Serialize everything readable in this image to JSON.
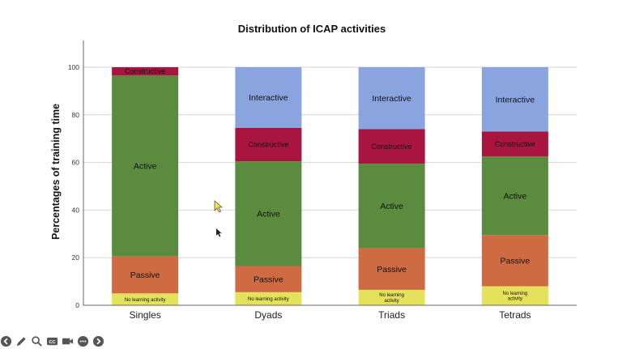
{
  "chart_data": {
    "type": "bar",
    "stacked": true,
    "title": "Distribution of ICAP activities",
    "xlabel": "",
    "ylabel": "Percentages of training time",
    "ylim": [
      0,
      100
    ],
    "yticks": [
      0,
      20,
      40,
      60,
      80,
      100
    ],
    "grid": true,
    "legend": "none (segments labeled in place)",
    "categories": [
      "Singles",
      "Dyads",
      "Triads",
      "Tetrads"
    ],
    "series": [
      {
        "name": "No learning activity",
        "labels": [
          "No learning activity",
          "No learning activity",
          "No learning\nactivity",
          "No learning\nactivity"
        ],
        "color": "#e4e15a",
        "values": [
          5,
          5.5,
          6.5,
          8
        ]
      },
      {
        "name": "Passive",
        "labels": [
          "Passive",
          "Passive",
          "Passive",
          "Passive"
        ],
        "color": "#cf6b43",
        "values": [
          15.5,
          11,
          17.5,
          21.5
        ]
      },
      {
        "name": "Active",
        "labels": [
          "Active",
          "Active",
          "Active",
          "Active"
        ],
        "color": "#5b8b3e",
        "values": [
          76,
          44,
          35.5,
          33
        ]
      },
      {
        "name": "Constructive",
        "labels": [
          "Constructive",
          "Constructive",
          "Constructive",
          "Constructive"
        ],
        "color": "#a8163f",
        "values": [
          3.5,
          14,
          14.5,
          10.5
        ]
      },
      {
        "name": "Interactive",
        "labels": [
          "",
          "Interactive",
          "Interactive",
          "Interactive"
        ],
        "color": "#8aa4e0",
        "values": [
          0,
          25.5,
          26,
          27
        ]
      }
    ]
  },
  "cursor": {
    "x_data": "Singles",
    "y_value": 41
  },
  "toolbar": {
    "icons": [
      "back-icon",
      "pencil-icon",
      "search-icon",
      "cc-icon",
      "camera-icon",
      "more-icon",
      "forward-icon"
    ]
  }
}
